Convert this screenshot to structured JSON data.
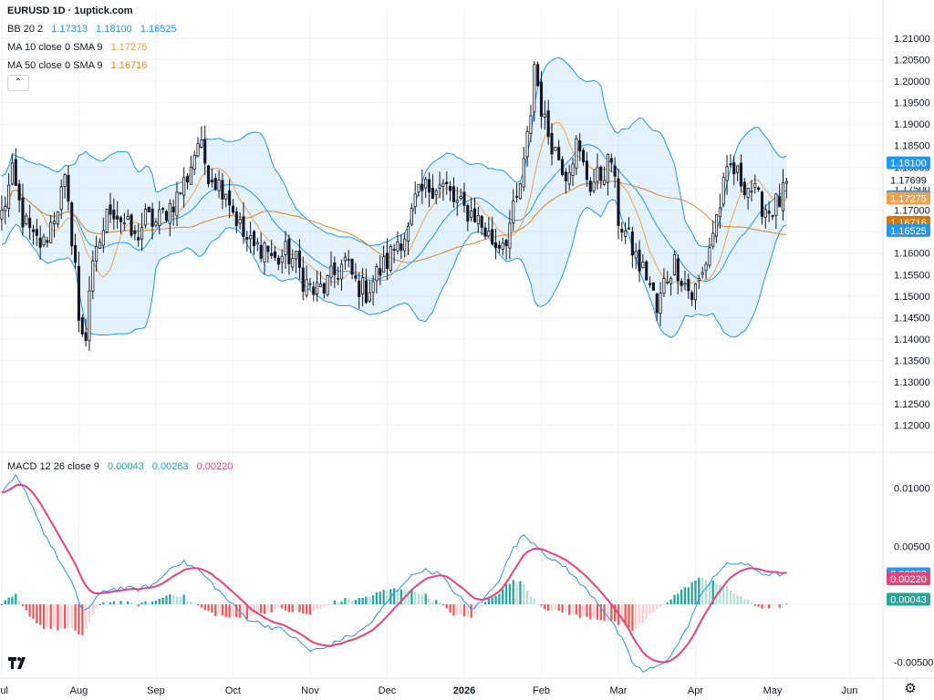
{
  "header": {
    "title": "EURUSD 1D · 1uptick.com"
  },
  "legend": {
    "bb": {
      "label": "BB 20 2",
      "values": [
        "1.17313",
        "1.18100",
        "1.16525"
      ],
      "color": "#2196f3"
    },
    "ma10": {
      "label": "MA 10 close 0 SMA 9",
      "value": "1.17275",
      "color": "#f0a24a"
    },
    "ma50": {
      "label": "MA 50 close 0 SMA 9",
      "value": "1.16716",
      "color": "#d48a2a"
    },
    "macd": {
      "label": "MACD 12 26 close 9",
      "values": [
        "0.00043",
        "0.00263",
        "0.00220"
      ],
      "colors": [
        "#26a69a",
        "#2196f3",
        "#ec407a"
      ]
    }
  },
  "price_badges": [
    {
      "text": "1.18100",
      "value": 1.181,
      "color": "#2196f3"
    },
    {
      "text": "1.17699",
      "value": 1.17699,
      "color": "#ffffff",
      "textColor": "#131722"
    },
    {
      "text": "1.17313",
      "value": 1.17313,
      "color": "#2196f3"
    },
    {
      "text": "1.17275",
      "value": 1.17275,
      "color": "#f0a24a"
    },
    {
      "text": "1.16716",
      "value": 1.16716,
      "color": "#d4780c"
    },
    {
      "text": "1.16525",
      "value": 1.16525,
      "color": "#2196f3"
    }
  ],
  "macd_badges": [
    {
      "text": "0.00263",
      "value": 0.00263,
      "color": "#2196f3"
    },
    {
      "text": "0.00220",
      "value": 0.0022,
      "color": "#ec407a"
    },
    {
      "text": "0.00043",
      "value": 0.00043,
      "color": "#26a69a"
    }
  ],
  "chart_data": {
    "type": "candlestick",
    "price_axis": {
      "ylim": [
        1.115,
        1.2125
      ],
      "ticks": [
        "1.12000",
        "1.12500",
        "1.13000",
        "1.13500",
        "1.14000",
        "1.14500",
        "1.15000",
        "1.15500",
        "1.16000",
        "1.16500",
        "1.17000",
        "1.17500",
        "1.18000",
        "1.18500",
        "1.19000",
        "1.19500",
        "1.20000",
        "1.20500",
        "1.21000"
      ]
    },
    "macd_axis": {
      "ylim": [
        -0.0062,
        0.0128
      ],
      "ticks": [
        "0.01000",
        "0.00500",
        "-0.00500"
      ]
    },
    "x_axis": {
      "labels": [
        "Jul",
        "Aug",
        "Sep",
        "Oct",
        "Nov",
        "Dec",
        "2026",
        "Feb",
        "Mar",
        "Apr",
        "May",
        "Jun"
      ],
      "label_positions": [
        0,
        22,
        44,
        66,
        88,
        110,
        132,
        154,
        176,
        198,
        220,
        242
      ],
      "bold": [
        "2026"
      ]
    },
    "bars_total_days": 252,
    "trading_days": 225,
    "price_keypoints": [
      [
        0,
        1.169
      ],
      [
        3,
        1.178
      ],
      [
        6,
        1.168
      ],
      [
        9,
        1.163
      ],
      [
        12,
        1.162
      ],
      [
        15,
        1.169
      ],
      [
        18,
        1.176
      ],
      [
        21,
        1.158
      ],
      [
        22,
        1.143
      ],
      [
        24,
        1.141
      ],
      [
        25,
        1.152
      ],
      [
        28,
        1.163
      ],
      [
        31,
        1.171
      ],
      [
        35,
        1.167
      ],
      [
        38,
        1.163
      ],
      [
        41,
        1.168
      ],
      [
        44,
        1.167
      ],
      [
        47,
        1.17
      ],
      [
        50,
        1.173
      ],
      [
        53,
        1.178
      ],
      [
        56,
        1.186
      ],
      [
        59,
        1.179
      ],
      [
        62,
        1.176
      ],
      [
        64,
        1.175
      ],
      [
        66,
        1.17
      ],
      [
        69,
        1.164
      ],
      [
        72,
        1.161
      ],
      [
        75,
        1.162
      ],
      [
        78,
        1.158
      ],
      [
        81,
        1.16
      ],
      [
        84,
        1.158
      ],
      [
        86,
        1.154
      ],
      [
        89,
        1.151
      ],
      [
        92,
        1.152
      ],
      [
        95,
        1.155
      ],
      [
        98,
        1.158
      ],
      [
        101,
        1.153
      ],
      [
        104,
        1.151
      ],
      [
        107,
        1.155
      ],
      [
        110,
        1.158
      ],
      [
        113,
        1.163
      ],
      [
        116,
        1.165
      ],
      [
        118,
        1.172
      ],
      [
        121,
        1.175
      ],
      [
        124,
        1.176
      ],
      [
        127,
        1.175
      ],
      [
        129,
        1.172
      ],
      [
        132,
        1.17
      ],
      [
        135,
        1.169
      ],
      [
        138,
        1.165
      ],
      [
        141,
        1.162
      ],
      [
        144,
        1.164
      ],
      [
        147,
        1.172
      ],
      [
        149,
        1.18
      ],
      [
        151,
        1.193
      ],
      [
        152,
        1.204
      ],
      [
        154,
        1.194
      ],
      [
        155,
        1.19
      ],
      [
        158,
        1.184
      ],
      [
        161,
        1.179
      ],
      [
        164,
        1.185
      ],
      [
        166,
        1.18
      ],
      [
        168,
        1.176
      ],
      [
        171,
        1.178
      ],
      [
        174,
        1.182
      ],
      [
        176,
        1.168
      ],
      [
        179,
        1.163
      ],
      [
        182,
        1.157
      ],
      [
        184,
        1.155
      ],
      [
        186,
        1.15
      ],
      [
        187,
        1.146
      ],
      [
        189,
        1.153
      ],
      [
        192,
        1.158
      ],
      [
        195,
        1.153
      ],
      [
        197,
        1.15
      ],
      [
        200,
        1.155
      ],
      [
        203,
        1.165
      ],
      [
        206,
        1.175
      ],
      [
        208,
        1.18
      ],
      [
        211,
        1.177
      ],
      [
        214,
        1.175
      ],
      [
        216,
        1.172
      ],
      [
        219,
        1.17
      ],
      [
        222,
        1.172
      ],
      [
        225,
        1.177
      ]
    ],
    "macd_keypoints": [
      [
        0,
        0.0095
      ],
      [
        4,
        0.011
      ],
      [
        8,
        0.009
      ],
      [
        12,
        0.0062
      ],
      [
        16,
        0.004
      ],
      [
        20,
        0.0018
      ],
      [
        23,
        -0.0005
      ],
      [
        25,
        -0.0003
      ],
      [
        29,
        0.0012
      ],
      [
        34,
        0.0014
      ],
      [
        39,
        0.0013
      ],
      [
        44,
        0.0018
      ],
      [
        49,
        0.0034
      ],
      [
        52,
        0.0036
      ],
      [
        56,
        0.003
      ],
      [
        60,
        0.0018
      ],
      [
        65,
        0.0002
      ],
      [
        70,
        -0.0012
      ],
      [
        75,
        -0.0018
      ],
      [
        80,
        -0.0022
      ],
      [
        84,
        -0.003
      ],
      [
        88,
        -0.004
      ],
      [
        92,
        -0.0038
      ],
      [
        97,
        -0.003
      ],
      [
        102,
        -0.0024
      ],
      [
        106,
        -0.0014
      ],
      [
        110,
        0.0002
      ],
      [
        115,
        0.002
      ],
      [
        120,
        0.003
      ],
      [
        125,
        0.0026
      ],
      [
        130,
        0.0008
      ],
      [
        134,
        -0.0004
      ],
      [
        137,
        0.0002
      ],
      [
        142,
        0.0022
      ],
      [
        146,
        0.0048
      ],
      [
        149,
        0.006
      ],
      [
        153,
        0.005
      ],
      [
        157,
        0.0038
      ],
      [
        161,
        0.0032
      ],
      [
        165,
        0.0018
      ],
      [
        169,
        0.0006
      ],
      [
        173,
        -0.001
      ],
      [
        177,
        -0.003
      ],
      [
        180,
        -0.005
      ],
      [
        183,
        -0.0058
      ],
      [
        187,
        -0.0054
      ],
      [
        191,
        -0.0044
      ],
      [
        195,
        -0.0024
      ],
      [
        199,
        0.0004
      ],
      [
        203,
        0.0024
      ],
      [
        207,
        0.0034
      ],
      [
        211,
        0.0036
      ],
      [
        215,
        0.003
      ],
      [
        218,
        0.0026
      ],
      [
        222,
        0.0026
      ],
      [
        225,
        0.0026
      ]
    ]
  }
}
